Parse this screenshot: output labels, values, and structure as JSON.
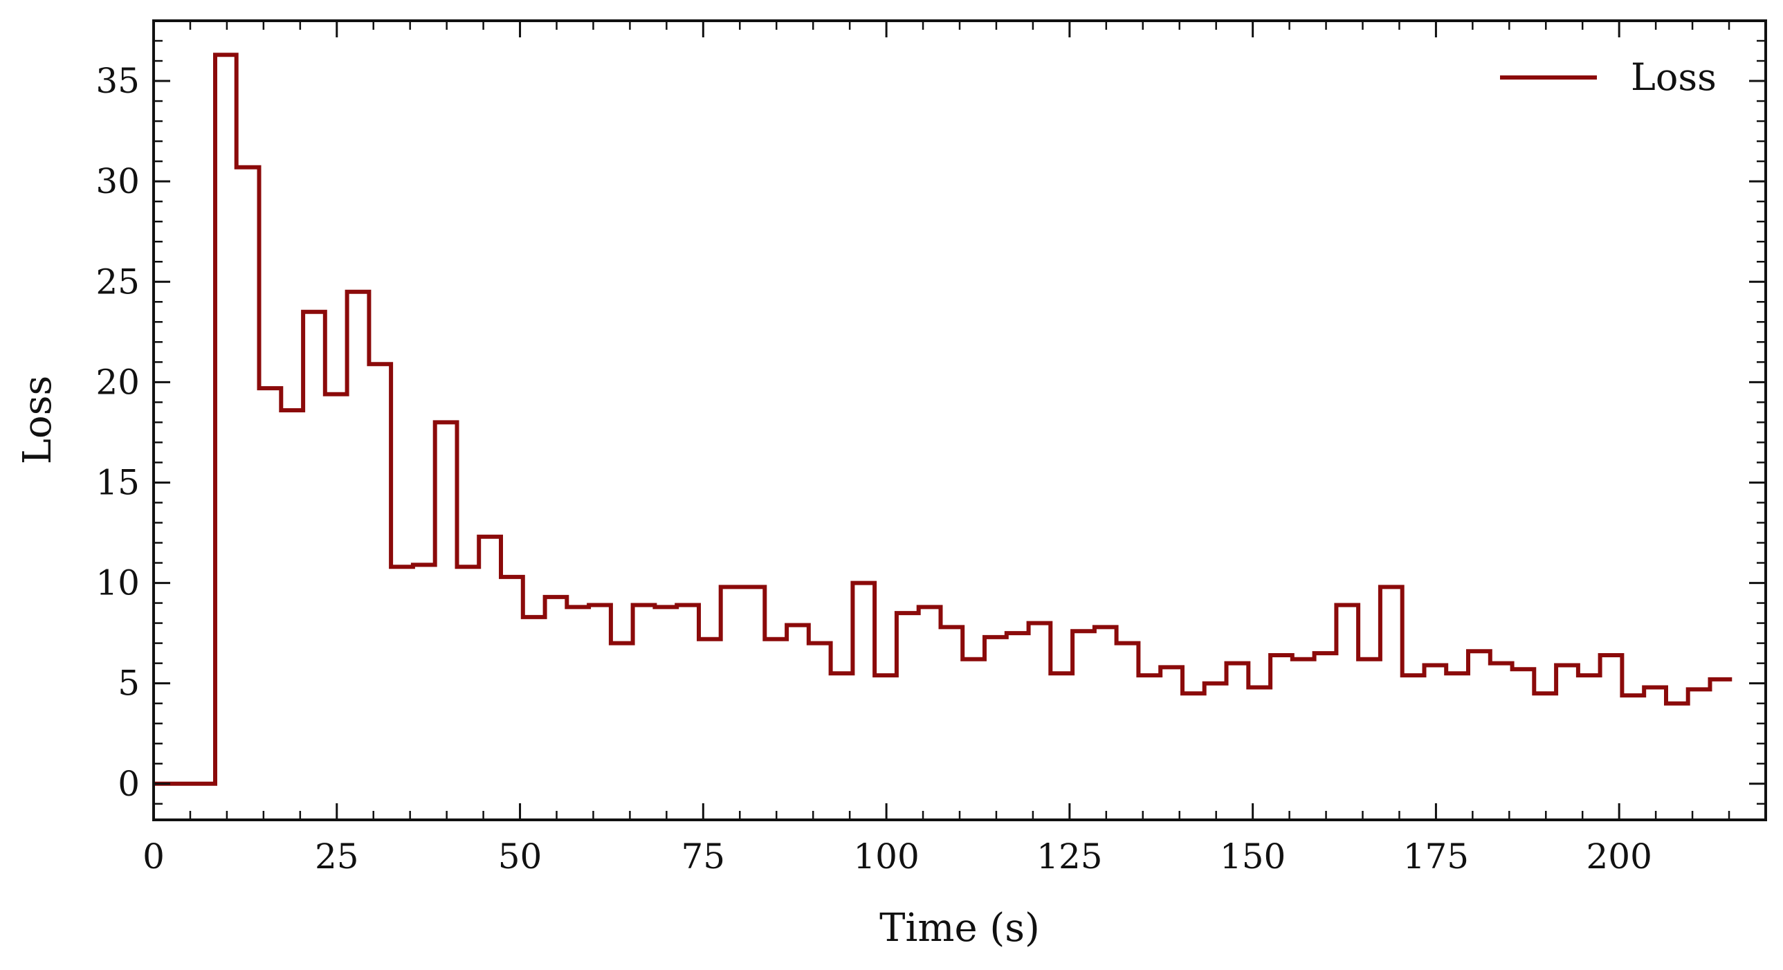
{
  "chart_data": {
    "type": "line",
    "drawstyle": "steps-post",
    "xlabel": "Time (s)",
    "ylabel": "Loss",
    "xlim": [
      0,
      220
    ],
    "ylim": [
      -1.8,
      38
    ],
    "xticks": [
      0,
      25,
      50,
      75,
      100,
      125,
      150,
      175,
      200
    ],
    "yticks": [
      0,
      5,
      10,
      15,
      20,
      25,
      30,
      35
    ],
    "grid": false,
    "legend": {
      "position": "top-right"
    },
    "colors": {
      "series": "#8b0a0a",
      "axis": "#111111"
    },
    "series": [
      {
        "name": "Loss",
        "x": [
          0,
          8.4,
          11.3,
          14.4,
          17.4,
          20.4,
          23.4,
          26.4,
          29.4,
          32.4,
          35.4,
          38.4,
          41.4,
          44.4,
          47.4,
          50.4,
          53.4,
          56.4,
          59.4,
          62.4,
          65.4,
          68.4,
          71.4,
          74.4,
          77.4,
          80.4,
          83.4,
          86.4,
          89.4,
          92.4,
          95.4,
          98.4,
          101.4,
          104.4,
          107.4,
          110.4,
          113.4,
          116.4,
          119.4,
          122.4,
          125.4,
          128.4,
          131.4,
          134.4,
          137.4,
          140.4,
          143.4,
          146.4,
          149.4,
          152.4,
          155.4,
          158.4,
          161.4,
          164.4,
          167.4,
          170.4,
          173.4,
          176.4,
          179.4,
          182.4,
          185.4,
          188.4,
          191.4,
          194.4,
          197.4,
          200.4,
          203.4,
          206.4,
          209.4,
          212.4,
          215.4
        ],
        "y": [
          0,
          36.3,
          30.7,
          19.7,
          18.6,
          23.5,
          19.4,
          24.5,
          20.9,
          10.8,
          10.9,
          18.0,
          10.8,
          12.3,
          10.3,
          8.3,
          9.3,
          8.8,
          8.9,
          7.0,
          8.9,
          8.8,
          8.9,
          7.2,
          9.8,
          9.8,
          7.2,
          7.9,
          7.0,
          5.5,
          10.0,
          5.4,
          8.5,
          8.8,
          7.8,
          6.2,
          7.3,
          7.5,
          8.0,
          5.5,
          7.6,
          7.8,
          7.0,
          5.4,
          5.8,
          4.5,
          5.0,
          6.0,
          4.8,
          6.4,
          6.2,
          6.5,
          8.9,
          6.2,
          9.8,
          5.4,
          5.9,
          5.5,
          6.6,
          6.0,
          5.7,
          4.5,
          5.9,
          5.4,
          6.4,
          4.4,
          4.8,
          4.0,
          4.7,
          5.2,
          5.2
        ]
      }
    ]
  }
}
